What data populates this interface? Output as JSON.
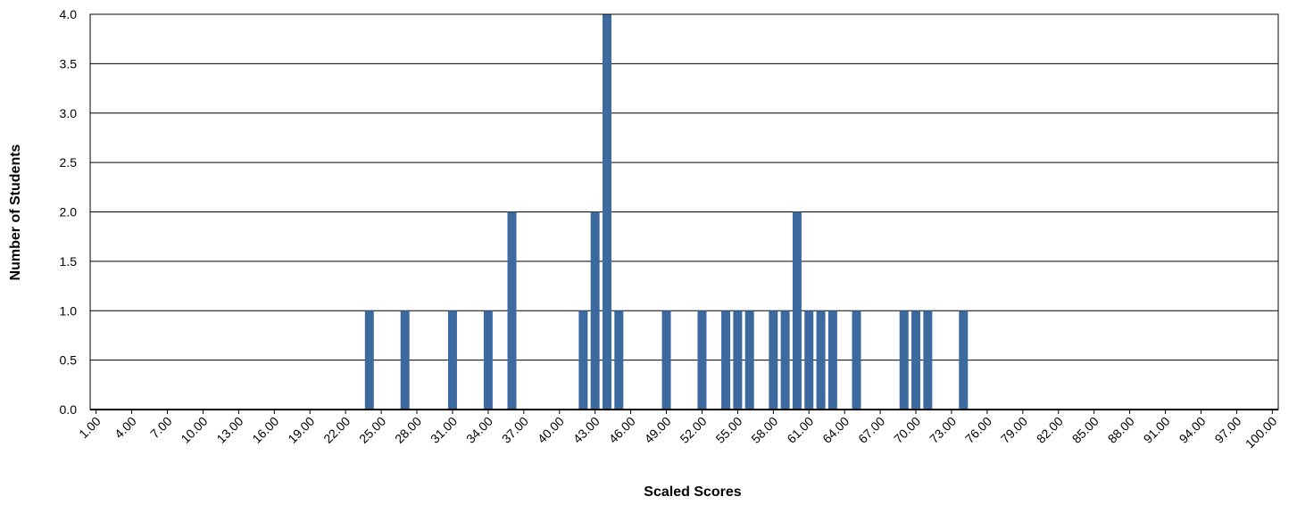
{
  "chart_data": {
    "type": "bar",
    "title": "",
    "xlabel": "Scaled Scores",
    "ylabel": "Number of Students",
    "ylim": [
      0,
      4
    ],
    "yticks": [
      "0.0",
      "0.5",
      "1.0",
      "1.5",
      "2.0",
      "2.5",
      "3.0",
      "3.5",
      "4.0"
    ],
    "xticks": [
      "1.00",
      "4.00",
      "7.00",
      "10.00",
      "13.00",
      "16.00",
      "19.00",
      "22.00",
      "25.00",
      "28.00",
      "31.00",
      "34.00",
      "37.00",
      "40.00",
      "43.00",
      "46.00",
      "49.00",
      "52.00",
      "55.00",
      "58.00",
      "61.00",
      "64.00",
      "67.00",
      "70.00",
      "73.00",
      "76.00",
      "79.00",
      "82.00",
      "85.00",
      "88.00",
      "91.00",
      "94.00",
      "97.00",
      "100.00"
    ],
    "x_range": [
      1,
      100
    ],
    "grid": true,
    "legend": "none",
    "bar_color": "#3d6a9e",
    "series": [
      {
        "x": [
          24,
          27,
          31,
          34,
          36,
          42,
          43,
          44,
          45,
          49,
          52,
          54,
          55,
          56,
          58,
          59,
          60,
          61,
          62,
          63,
          65,
          69,
          70,
          71,
          74
        ],
        "values": [
          1,
          1,
          1,
          1,
          2,
          1,
          2,
          4,
          1,
          1,
          1,
          1,
          1,
          1,
          1,
          1,
          2,
          1,
          1,
          1,
          1,
          1,
          1,
          1,
          1
        ]
      }
    ]
  }
}
